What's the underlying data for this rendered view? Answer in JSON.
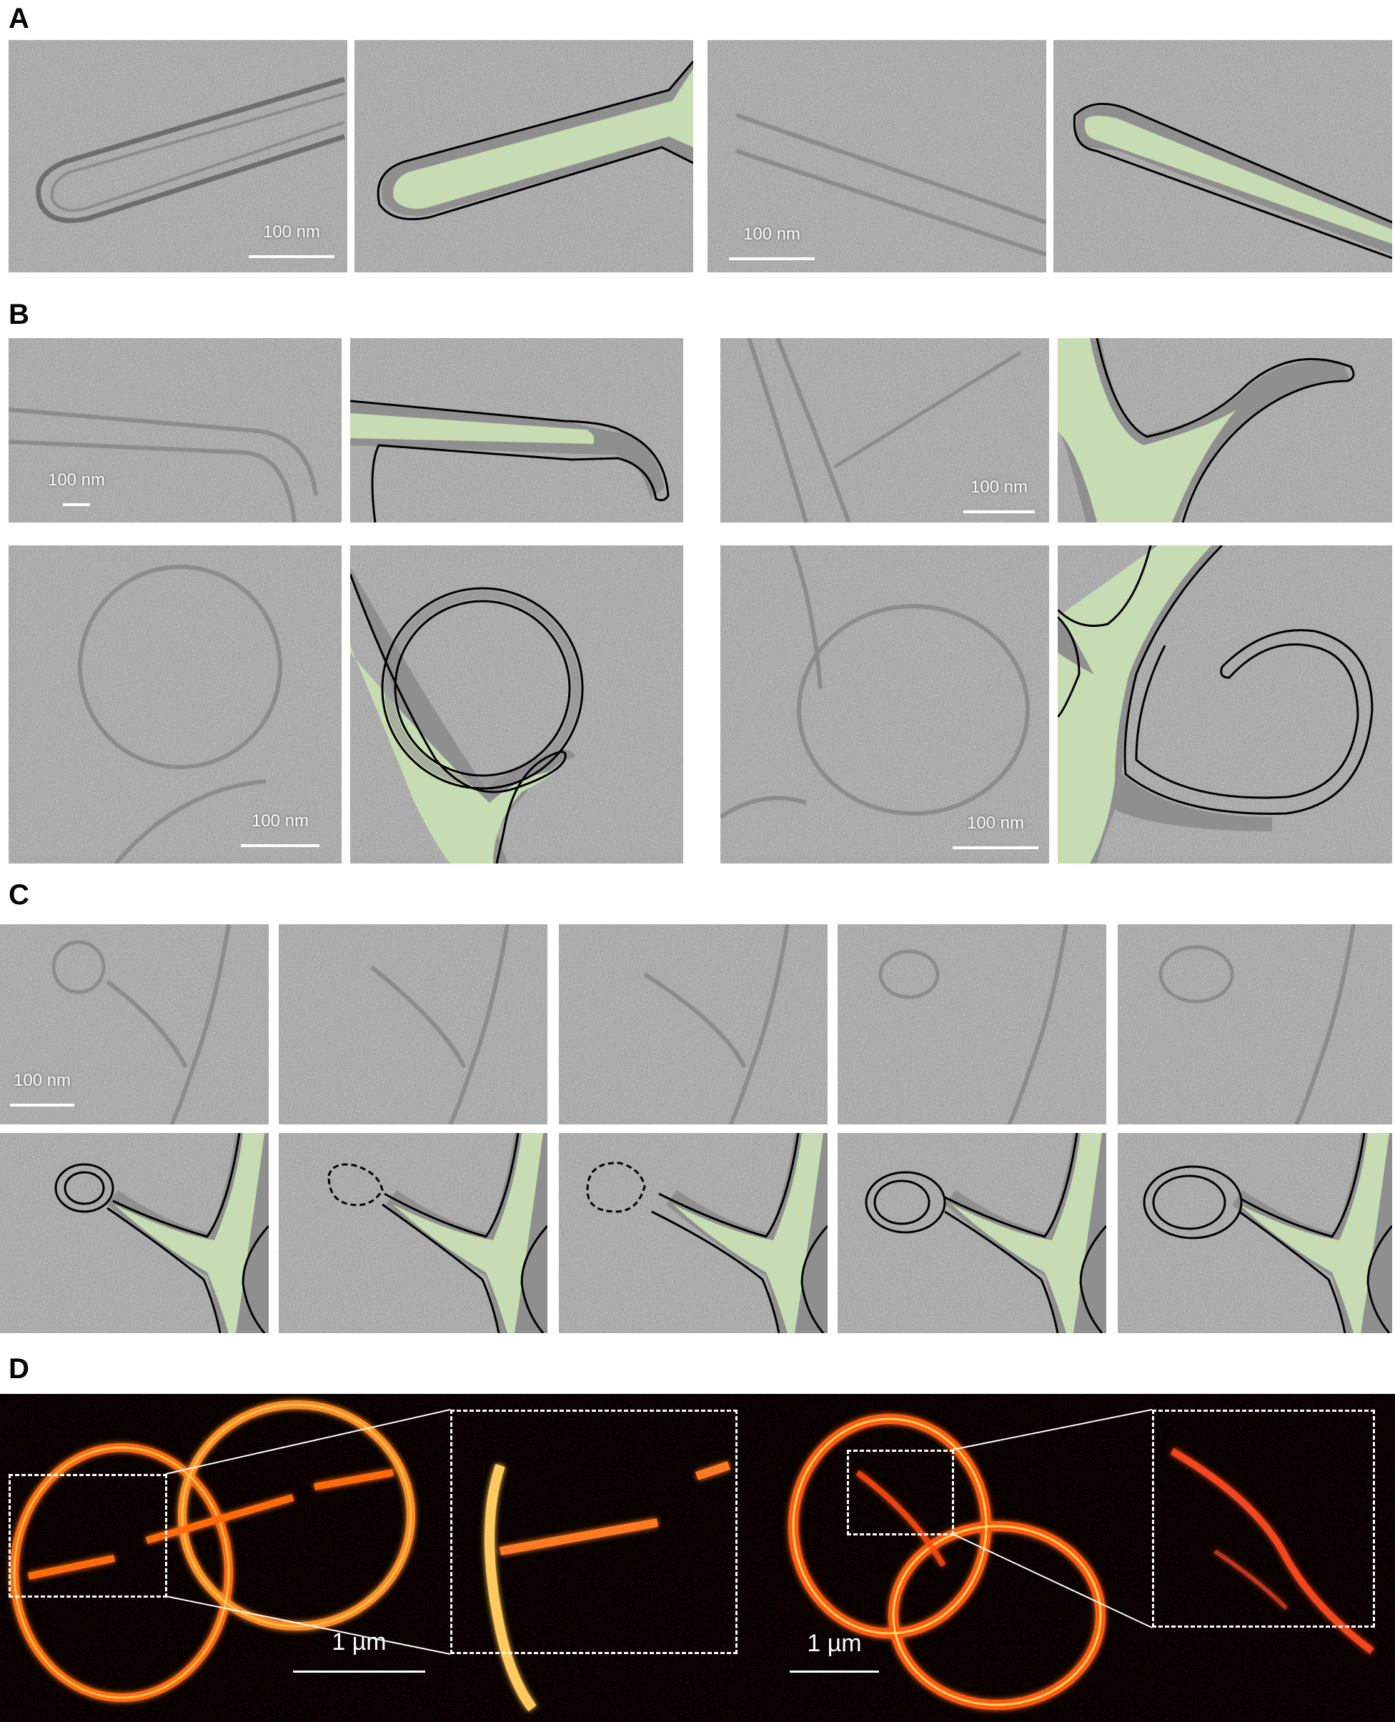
{
  "panels": {
    "a": {
      "letter": "A",
      "scale_left": "100 nm",
      "scale_right": "100 nm"
    },
    "b": {
      "letter": "B",
      "scale_tl": "100 nm",
      "scale_tr": "100 nm",
      "scale_bl": "100 nm",
      "scale_br": "100 nm"
    },
    "c": {
      "letter": "C",
      "scale": "100 nm"
    },
    "d": {
      "letter": "D",
      "scale_left": "1 µm",
      "scale_right": "1 µm"
    }
  },
  "colors": {
    "tomogram_gray": "#a5a5a5",
    "segmentation_fill": "#c8dcb4",
    "membrane_halo": "#8f8f8f",
    "outline": "#000000",
    "fluorescence_ring": "#ff6a10",
    "fluorescence_core": "#ffd060",
    "fluorescence_background": "#050000"
  }
}
